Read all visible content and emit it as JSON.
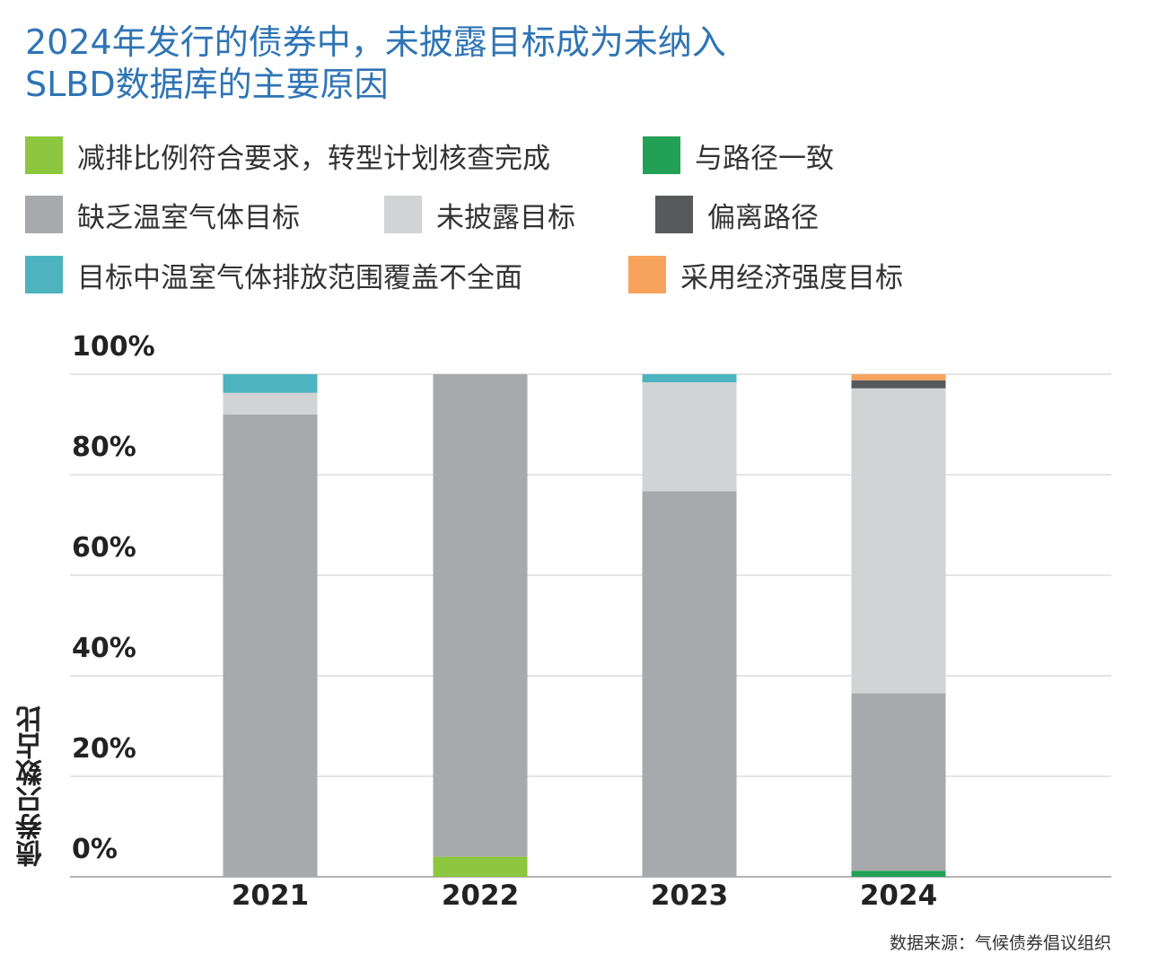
{
  "title": {
    "line1": "2024年发行的债券中，未披露目标成为未纳入",
    "line2": "SLBD数据库的主要原因"
  },
  "legend": [
    {
      "label": "减排比例符合要求，转型计划核查完成",
      "color": "#8dc63f"
    },
    {
      "label": "与路径一致",
      "color": "#22a055"
    },
    {
      "label": "缺乏温室气体目标",
      "color": "#a7a9ac"
    },
    {
      "label": "未披露目标",
      "color": "#d1d3d4"
    },
    {
      "label": "偏离路径",
      "color": "#58595b"
    },
    {
      "label": "目标中温室气体排放范围覆盖不全面",
      "color": "#4db3bf"
    },
    {
      "label": "采用经济强度目标",
      "color": "#f7a35c"
    }
  ],
  "y_axis_title": "债券只数占比",
  "source": "数据来源：气候债券倡议组织",
  "chart_data": {
    "type": "bar",
    "stacked": true,
    "categories": [
      "2021",
      "2022",
      "2023",
      "2024"
    ],
    "ylabel": "债券只数占比",
    "ylim": [
      0,
      100
    ],
    "yticks": [
      "0%",
      "20%",
      "40%",
      "60%",
      "80%",
      "100%"
    ],
    "series": [
      {
        "name": "减排比例符合要求，转型计划核查完成",
        "color": "#8dc63f",
        "values": [
          0,
          4,
          0,
          0
        ]
      },
      {
        "name": "与路径一致",
        "color": "#22a055",
        "values": [
          0,
          0,
          0,
          1.2
        ]
      },
      {
        "name": "缺乏温室气体目标",
        "color": "#a7a9ac",
        "values": [
          92,
          96,
          76.7,
          35.3
        ]
      },
      {
        "name": "未披露目标",
        "color": "#d1d3d4",
        "values": [
          4.3,
          0,
          21.7,
          60.7
        ]
      },
      {
        "name": "偏离路径",
        "color": "#58595b",
        "values": [
          0,
          0,
          0,
          1.6
        ]
      },
      {
        "name": "目标中温室气体排放范围覆盖不全面",
        "color": "#4db3bf",
        "values": [
          3.7,
          0,
          1.6,
          0
        ]
      },
      {
        "name": "采用经济强度目标",
        "color": "#f7a35c",
        "values": [
          0,
          0,
          0,
          1.2
        ]
      }
    ]
  }
}
